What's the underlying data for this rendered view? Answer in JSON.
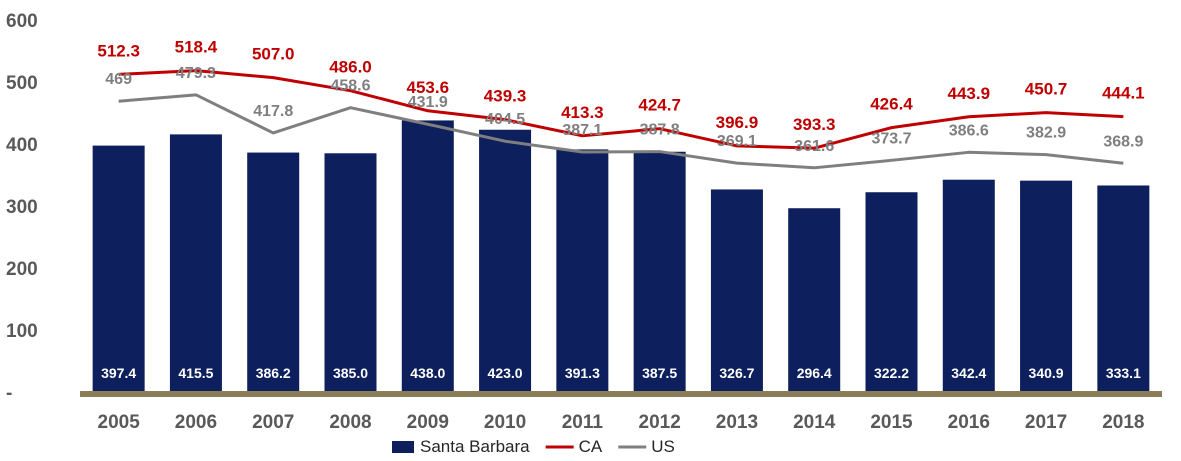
{
  "chart_data": {
    "type": "bar",
    "categories": [
      "2005",
      "2006",
      "2007",
      "2008",
      "2009",
      "2010",
      "2011",
      "2012",
      "2013",
      "2014",
      "2015",
      "2016",
      "2017",
      "2018"
    ],
    "series": [
      {
        "name": "Santa Barbara",
        "type": "bar",
        "values": [
          397.4,
          415.5,
          386.2,
          385.0,
          438.0,
          423.0,
          391.3,
          387.5,
          326.7,
          296.4,
          322.2,
          342.4,
          340.9,
          333.1
        ],
        "labels": [
          "397.4",
          "415.5",
          "386.2",
          "385.0",
          "438.0",
          "423.0",
          "391.3",
          "387.5",
          "326.7",
          "296.4",
          "322.2",
          "342.4",
          "340.9",
          "333.1"
        ],
        "color": "#0d1f5c"
      },
      {
        "name": "CA",
        "type": "line",
        "values": [
          512.3,
          518.4,
          507.0,
          486.0,
          453.6,
          439.3,
          413.3,
          424.7,
          396.9,
          393.3,
          426.4,
          443.9,
          450.7,
          444.1
        ],
        "labels": [
          "512.3",
          "518.4",
          "507.0",
          "486.0",
          "453.6",
          "439.3",
          "413.3",
          "424.7",
          "396.9",
          "393.3",
          "426.4",
          "443.9",
          "450.7",
          "444.1"
        ],
        "color": "#c00000"
      },
      {
        "name": "US",
        "type": "line",
        "values": [
          469,
          479.3,
          417.8,
          458.6,
          431.9,
          404.5,
          387.1,
          387.8,
          369.1,
          361.6,
          373.7,
          386.6,
          382.9,
          368.9
        ],
        "labels": [
          "469",
          "479.3",
          "417.8",
          "458.6",
          "431.9",
          "404.5",
          "387.1",
          "387.8",
          "369.1",
          "361.6",
          "373.7",
          "386.6",
          "382.9",
          "368.9"
        ],
        "color": "#7f7f7f"
      }
    ],
    "ylim": [
      0,
      600
    ],
    "yticks": [
      0,
      100,
      200,
      300,
      400,
      500,
      600
    ],
    "ytick_labels": [
      "-",
      "100",
      "200",
      "300",
      "400",
      "500",
      "600"
    ],
    "legend_position": "bottom-center",
    "grid": false,
    "title": "",
    "xlabel": "",
    "ylabel": ""
  }
}
